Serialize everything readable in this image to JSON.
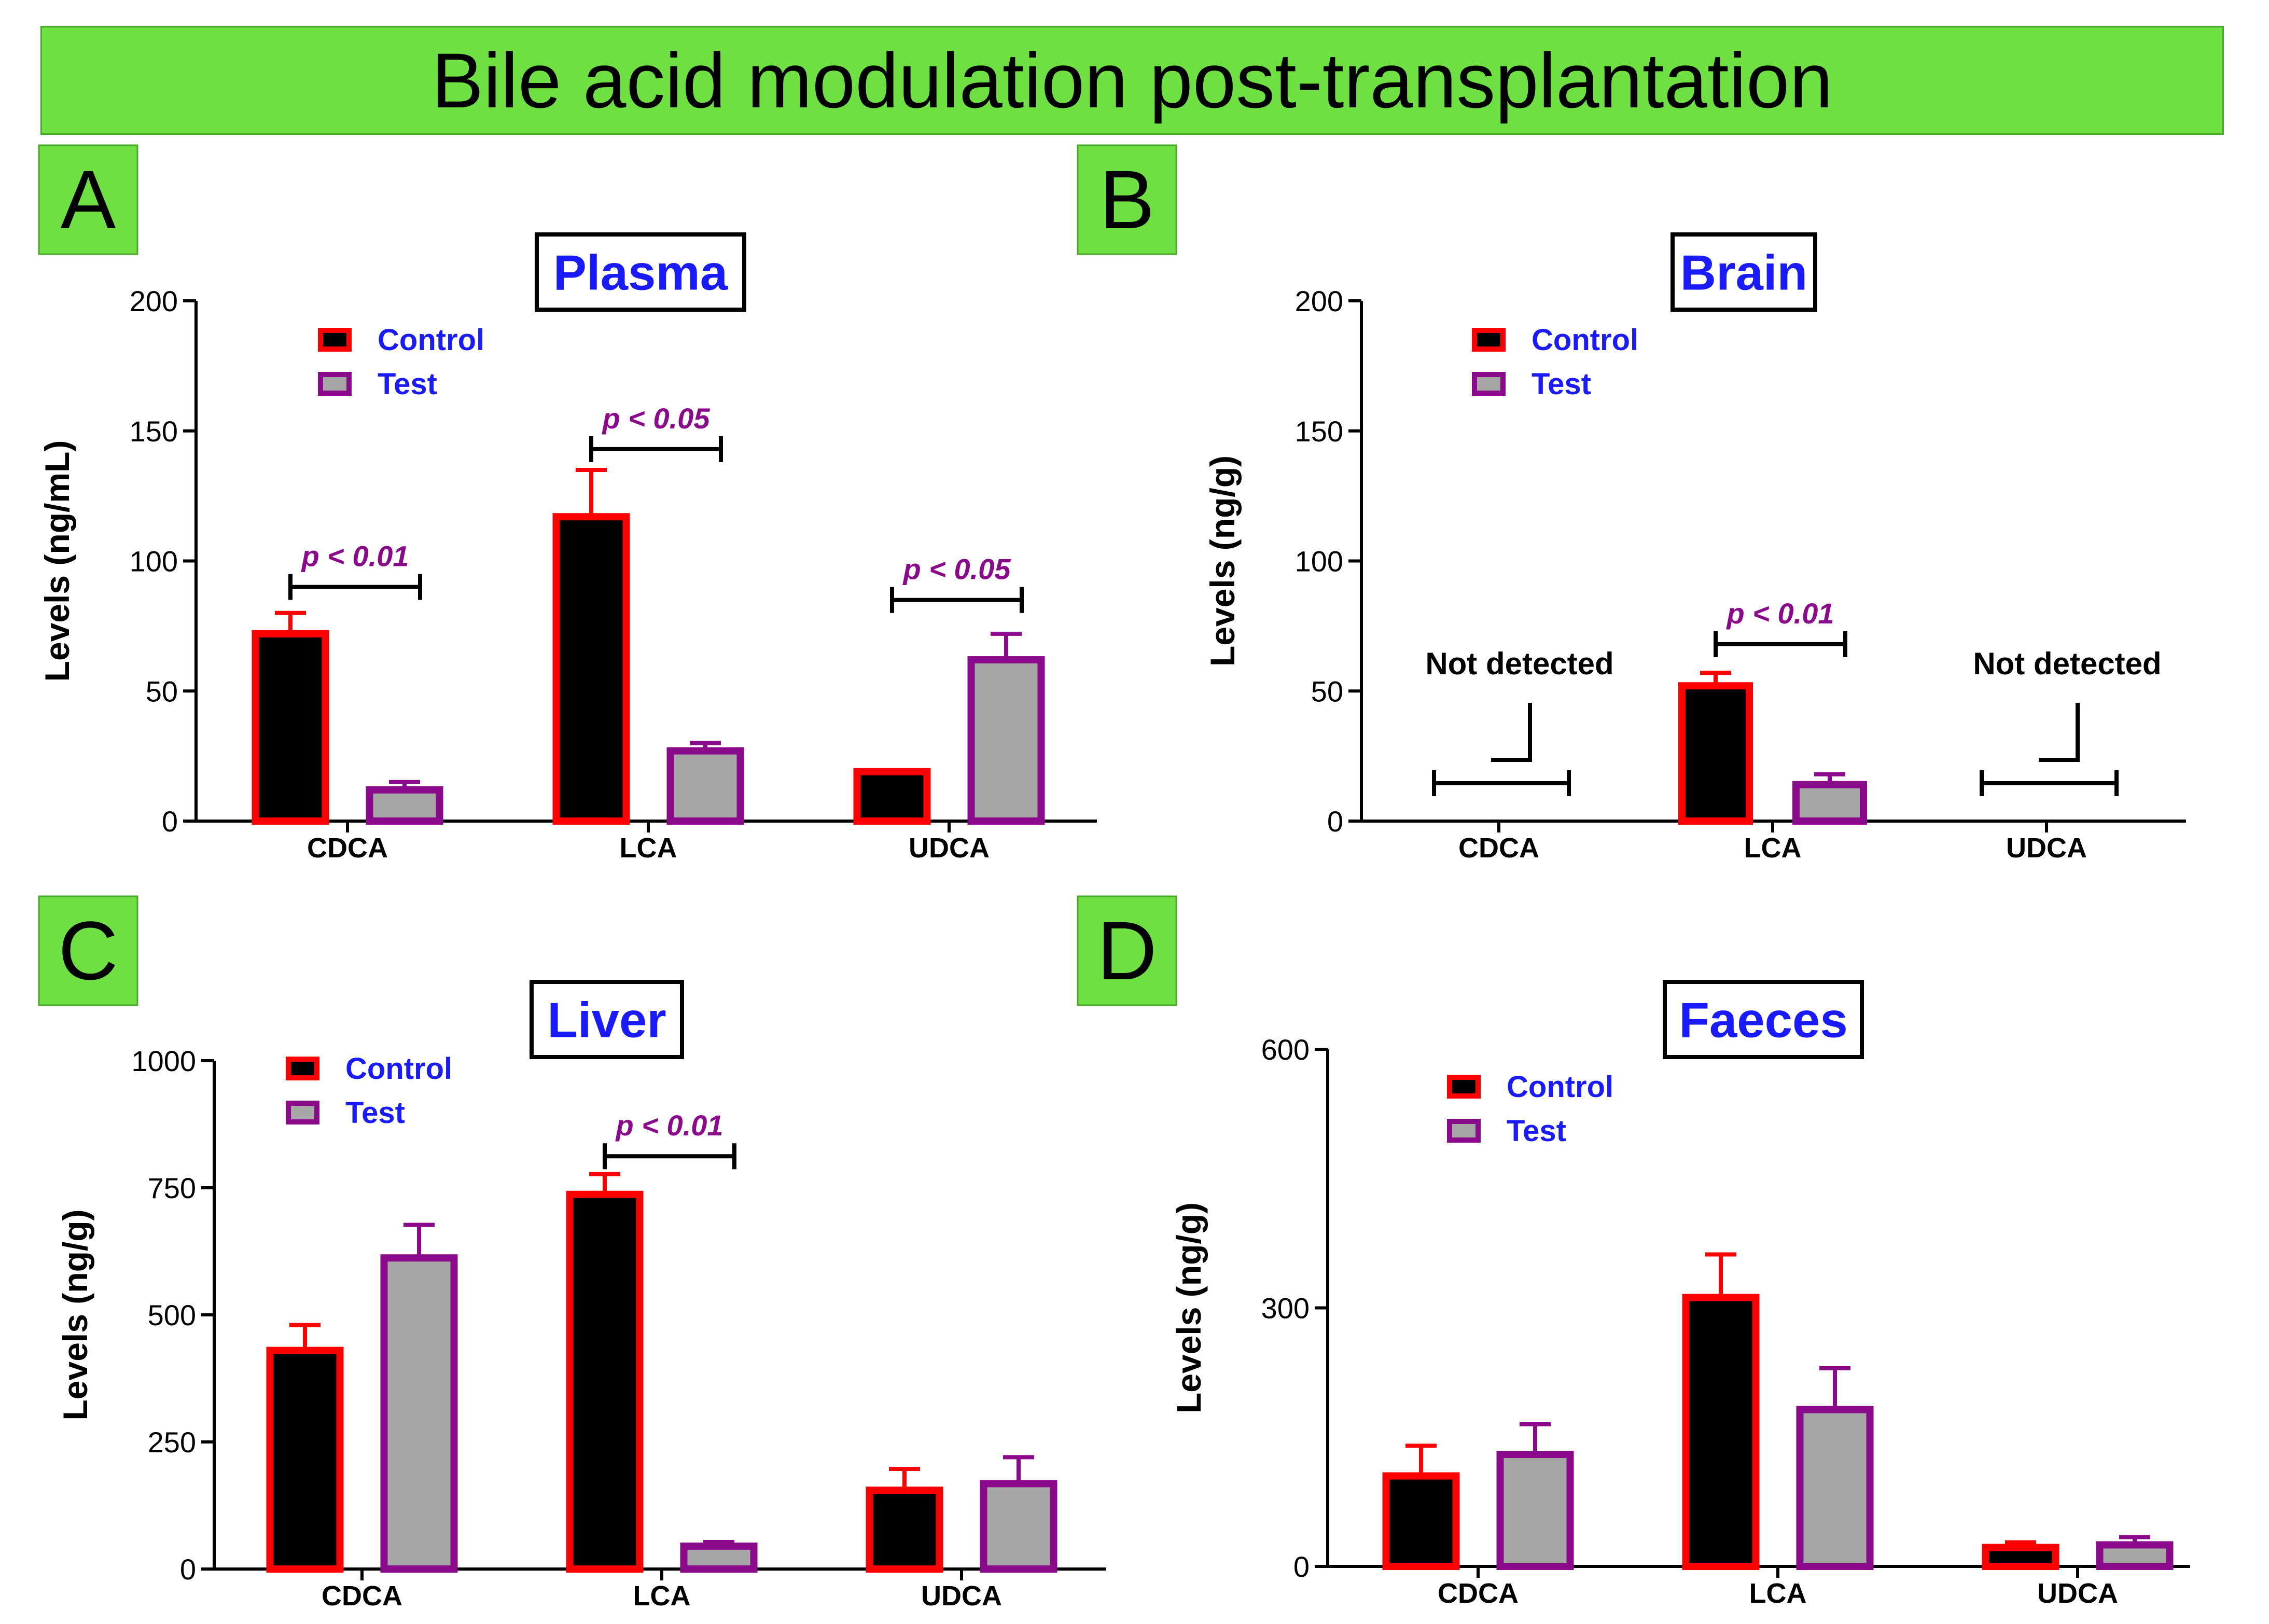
{
  "banner": {
    "title": "Bile acid modulation post-transplantation",
    "color": "#6ee042"
  },
  "colors": {
    "control_border": "#ff0000",
    "control_fill": "#000000",
    "test_border": "#8b0a8b",
    "test_fill": "#a6a6a6",
    "title_text": "#1a1aff",
    "legend_text": "#1a1aff",
    "pvalue_text": "#8b0a8b",
    "panel_letter_bg": "#6ee042"
  },
  "legend": {
    "control": "Control",
    "test": "Test"
  },
  "chart_data": [
    {
      "panel": "A",
      "type": "bar",
      "title": "Plasma",
      "ylabel": "Levels (ng/mL)",
      "ylim": [
        0,
        200
      ],
      "yticks": [
        "0",
        "50",
        "100",
        "150",
        "200"
      ],
      "categories": [
        "CDCA",
        "LCA",
        "UDCA"
      ],
      "series": [
        {
          "name": "Control",
          "values": [
            72,
            117,
            19
          ],
          "errors": [
            8,
            18,
            0
          ]
        },
        {
          "name": "Test",
          "values": [
            12,
            27,
            62
          ],
          "errors": [
            3,
            3,
            10
          ]
        }
      ],
      "annotations": [
        {
          "category": 0,
          "text": "p < 0.01",
          "level": 90
        },
        {
          "category": 1,
          "text": "p < 0.05",
          "level": 143
        },
        {
          "category": 2,
          "text": "p < 0.05",
          "level": 85
        }
      ],
      "not_detected": []
    },
    {
      "panel": "B",
      "type": "bar",
      "title": "Brain",
      "ylabel": "Levels (ng/g)",
      "ylim": [
        0,
        200
      ],
      "yticks": [
        "0",
        "50",
        "100",
        "150",
        "200"
      ],
      "categories": [
        "CDCA",
        "LCA",
        "UDCA"
      ],
      "series": [
        {
          "name": "Control",
          "values": [
            null,
            52,
            null
          ],
          "errors": [
            0,
            5,
            0
          ]
        },
        {
          "name": "Test",
          "values": [
            null,
            14,
            null
          ],
          "errors": [
            0,
            4,
            0
          ]
        }
      ],
      "annotations": [
        {
          "category": 1,
          "text": "p < 0.01",
          "level": 68
        }
      ],
      "not_detected": [
        {
          "category": 0,
          "text": "Not detected"
        },
        {
          "category": 2,
          "text": "Not detected"
        }
      ]
    },
    {
      "panel": "C",
      "type": "bar",
      "title": "Liver",
      "ylabel": "Levels (ng/g)",
      "ylim": [
        0,
        1000
      ],
      "yticks": [
        "0",
        "250",
        "500",
        "750",
        "1000"
      ],
      "categories": [
        "CDCA",
        "LCA",
        "UDCA"
      ],
      "series": [
        {
          "name": "Control",
          "values": [
            430,
            737,
            155
          ],
          "errors": [
            50,
            40,
            42
          ]
        },
        {
          "name": "Test",
          "values": [
            612,
            45,
            168
          ],
          "errors": [
            65,
            8,
            52
          ]
        }
      ],
      "annotations": [
        {
          "category": 1,
          "text": "p < 0.01",
          "level": 812
        }
      ],
      "not_detected": []
    },
    {
      "panel": "D",
      "type": "bar",
      "title": "Faeces",
      "ylabel": "Levels (ng/g)",
      "ylim": [
        0,
        600
      ],
      "yticks": [
        "0",
        "300",
        "600"
      ],
      "categories": [
        "CDCA",
        "LCA",
        "UDCA"
      ],
      "series": [
        {
          "name": "Control",
          "values": [
            105,
            312,
            22
          ],
          "errors": [
            35,
            50,
            6
          ]
        },
        {
          "name": "Test",
          "values": [
            130,
            182,
            25
          ],
          "errors": [
            35,
            48,
            9
          ]
        }
      ],
      "annotations": [],
      "not_detected": []
    }
  ]
}
